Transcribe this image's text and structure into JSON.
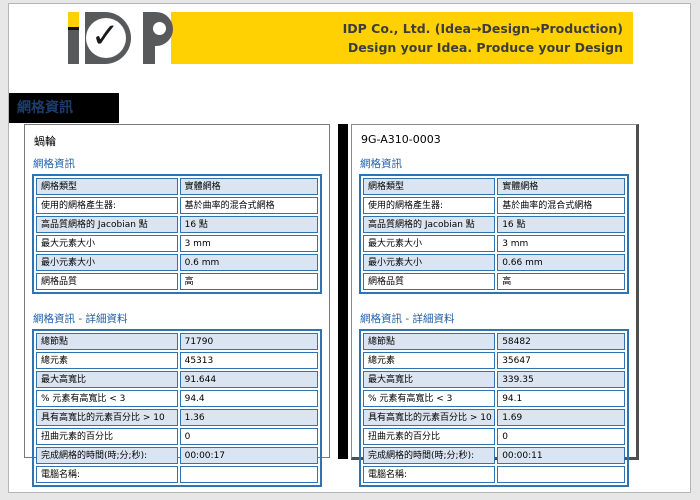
{
  "header": {
    "company_line1": "IDP Co., Ltd. (Idea→Design→Production)",
    "company_line2": "Design your Idea. Produce your Design",
    "logo_check": "✓"
  },
  "title_bar": {
    "label": "網格資訊"
  },
  "panels": [
    {
      "title": "蝸輪",
      "sections": [
        {
          "heading": "網格資訊",
          "rows": [
            [
              "網格類型",
              "實體網格"
            ],
            [
              "使用的網格產生器:",
              "基於曲率的混合式網格"
            ],
            [
              "高品質網格的 Jacobian 點",
              "16 點"
            ],
            [
              "最大元素大小",
              "3 mm"
            ],
            [
              "最小元素大小",
              "0.6 mm"
            ],
            [
              "網格品質",
              "高"
            ]
          ]
        },
        {
          "heading": "網格資訊 - 詳細資料",
          "rows": [
            [
              "總節點",
              "71790"
            ],
            [
              "總元素",
              "45313"
            ],
            [
              "最大高寬比",
              "91.644"
            ],
            [
              "% 元素有高寬比 < 3",
              "94.4"
            ],
            [
              "具有高寬比的元素百分比 > 10",
              "1.36"
            ],
            [
              "扭曲元素的百分比",
              "0"
            ],
            [
              "完成網格的時間(時;分;秒):",
              "00:00:17"
            ],
            [
              "電腦名稱:",
              ""
            ]
          ]
        }
      ]
    },
    {
      "title": "9G-A310-0003",
      "sections": [
        {
          "heading": "網格資訊",
          "rows": [
            [
              "網格類型",
              "實體網格"
            ],
            [
              "使用的網格產生器:",
              "基於曲率的混合式網格"
            ],
            [
              "高品質網格的 Jacobian 點",
              "16 點"
            ],
            [
              "最大元素大小",
              "3 mm"
            ],
            [
              "最小元素大小",
              "0.66 mm"
            ],
            [
              "網格品質",
              "高"
            ]
          ]
        },
        {
          "heading": "網格資訊 - 詳細資料",
          "rows": [
            [
              "總節點",
              "58482"
            ],
            [
              "總元素",
              "35647"
            ],
            [
              "最大高寬比",
              "339.35"
            ],
            [
              "% 元素有高寬比 < 3",
              "94.1"
            ],
            [
              "具有高寬比的元素百分比 > 10",
              "1.69"
            ],
            [
              "扭曲元素的百分比",
              "0"
            ],
            [
              "完成網格的時間(時;分;秒):",
              "00:00:11"
            ],
            [
              "電腦名稱:",
              ""
            ]
          ]
        }
      ]
    }
  ],
  "colors": {
    "banner_yellow": "#FFD103",
    "logo_gray": "#58595B",
    "table_border_blue": "#2E74B5",
    "row_shade_blue": "#DBE5F1",
    "heading_blue": "#1F5FA9",
    "title_text_blue": "#1C3C69"
  }
}
